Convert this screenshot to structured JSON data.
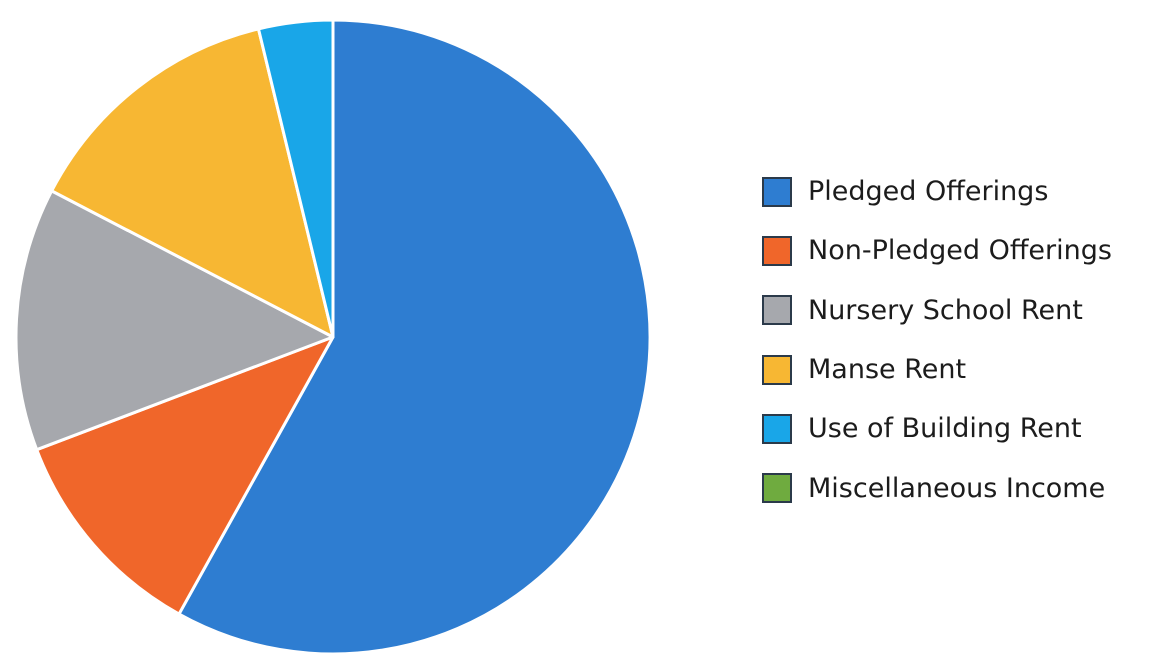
{
  "chart_data": {
    "type": "pie",
    "title": "",
    "legend_position": "right",
    "slices": [
      {
        "label": "Pledged Offerings",
        "value": 61.5,
        "color": "#2e7dd1"
      },
      {
        "label": "Non-Pledged Offerings",
        "value": 11.8,
        "color": "#f0662a"
      },
      {
        "label": "Nursery School Rent",
        "value": 14.2,
        "color": "#a6a8ad"
      },
      {
        "label": "Manse Rent",
        "value": 14.4,
        "color": "#f7b733"
      },
      {
        "label": "Use of Building Rent",
        "value": 4.0,
        "color": "#19a6e8"
      },
      {
        "label": "Miscellaneous Income",
        "value": 0.0,
        "color": "#6fab3f"
      }
    ]
  }
}
